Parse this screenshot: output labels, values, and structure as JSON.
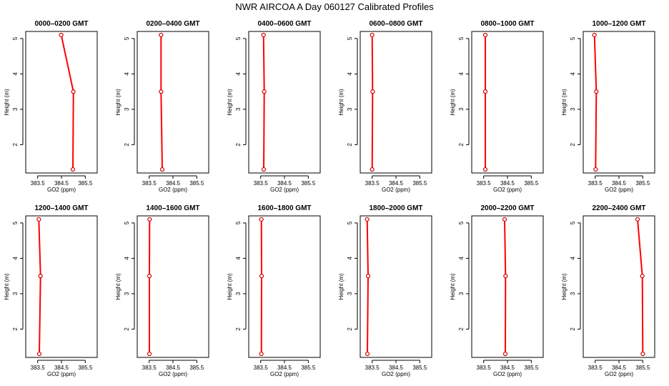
{
  "figure": {
    "title": "NWR AIRCOA A  Day 060127  Calibrated Profiles",
    "xlabel": "GO2 (ppm)",
    "ylabel": "Height (m)",
    "line_color": "#ff0000",
    "marker_color": "#cc0000"
  },
  "chart_data": [
    {
      "type": "line",
      "title": "0000–0200 GMT",
      "xlim": [
        383.0,
        386.0
      ],
      "ylim": [
        1.2,
        5.2
      ],
      "xticks": [
        "383.5",
        "384.5",
        "385.5"
      ],
      "xtick_values": [
        383.5,
        384.5,
        385.5
      ],
      "yticks": [
        "2",
        "3",
        "4",
        "5"
      ],
      "ytick_values": [
        2,
        3,
        4,
        5
      ],
      "x": [
        384.49,
        385.0,
        384.98
      ],
      "y": [
        5.1,
        3.5,
        1.3
      ]
    },
    {
      "type": "line",
      "title": "0200–0400 GMT",
      "xlim": [
        383.0,
        386.0
      ],
      "ylim": [
        1.2,
        5.2
      ],
      "xticks": [
        "383.5",
        "384.5",
        "385.5"
      ],
      "xtick_values": [
        383.5,
        384.5,
        385.5
      ],
      "yticks": [
        "2",
        "3",
        "4",
        "5"
      ],
      "ytick_values": [
        2,
        3,
        4,
        5
      ],
      "x": [
        384.0,
        384.0,
        384.05
      ],
      "y": [
        5.1,
        3.5,
        1.3
      ]
    },
    {
      "type": "line",
      "title": "0400–0600 GMT",
      "xlim": [
        383.0,
        386.0
      ],
      "ylim": [
        1.2,
        5.2
      ],
      "xticks": [
        "383.5",
        "384.5",
        "385.5"
      ],
      "xtick_values": [
        383.5,
        384.5,
        385.5
      ],
      "yticks": [
        "2",
        "3",
        "4",
        "5"
      ],
      "ytick_values": [
        2,
        3,
        4,
        5
      ],
      "x": [
        383.62,
        383.65,
        383.63
      ],
      "y": [
        5.1,
        3.5,
        1.3
      ]
    },
    {
      "type": "line",
      "title": "0600–0800 GMT",
      "xlim": [
        383.0,
        386.0
      ],
      "ylim": [
        1.2,
        5.2
      ],
      "xticks": [
        "383.5",
        "384.5",
        "385.5"
      ],
      "xtick_values": [
        383.5,
        384.5,
        385.5
      ],
      "yticks": [
        "2",
        "3",
        "4",
        "5"
      ],
      "ytick_values": [
        2,
        3,
        4,
        5
      ],
      "x": [
        383.5,
        383.52,
        383.5
      ],
      "y": [
        5.1,
        3.5,
        1.3
      ]
    },
    {
      "type": "line",
      "title": "0800–1000 GMT",
      "xlim": [
        383.0,
        386.0
      ],
      "ylim": [
        1.2,
        5.2
      ],
      "xticks": [
        "383.5",
        "384.5",
        "385.5"
      ],
      "xtick_values": [
        383.5,
        384.5,
        385.5
      ],
      "yticks": [
        "2",
        "3",
        "4",
        "5"
      ],
      "ytick_values": [
        2,
        3,
        4,
        5
      ],
      "x": [
        383.57,
        383.57,
        383.57
      ],
      "y": [
        5.1,
        3.5,
        1.3
      ]
    },
    {
      "type": "line",
      "title": "1000–1200 GMT",
      "xlim": [
        383.0,
        386.0
      ],
      "ylim": [
        1.2,
        5.2
      ],
      "xticks": [
        "383.5",
        "384.5",
        "385.5"
      ],
      "xtick_values": [
        383.5,
        384.5,
        385.5
      ],
      "yticks": [
        "2",
        "3",
        "4",
        "5"
      ],
      "ytick_values": [
        2,
        3,
        4,
        5
      ],
      "x": [
        383.47,
        383.55,
        383.52
      ],
      "y": [
        5.1,
        3.5,
        1.3
      ]
    },
    {
      "type": "line",
      "title": "1200–1400 GMT",
      "xlim": [
        383.0,
        386.0
      ],
      "ylim": [
        1.2,
        5.2
      ],
      "xticks": [
        "383.5",
        "384.5",
        "385.5"
      ],
      "xtick_values": [
        383.5,
        384.5,
        385.5
      ],
      "yticks": [
        "2",
        "3",
        "4",
        "5"
      ],
      "ytick_values": [
        2,
        3,
        4,
        5
      ],
      "x": [
        383.55,
        383.62,
        383.57
      ],
      "y": [
        5.1,
        3.5,
        1.3
      ]
    },
    {
      "type": "line",
      "title": "1400–1600 GMT",
      "xlim": [
        383.0,
        386.0
      ],
      "ylim": [
        1.2,
        5.2
      ],
      "xticks": [
        "383.5",
        "384.5",
        "385.5"
      ],
      "xtick_values": [
        383.5,
        384.5,
        385.5
      ],
      "yticks": [
        "2",
        "3",
        "4",
        "5"
      ],
      "ytick_values": [
        2,
        3,
        4,
        5
      ],
      "x": [
        383.52,
        383.51,
        383.51
      ],
      "y": [
        5.1,
        3.5,
        1.3
      ]
    },
    {
      "type": "line",
      "title": "1600–1800 GMT",
      "xlim": [
        383.0,
        386.0
      ],
      "ylim": [
        1.2,
        5.2
      ],
      "xticks": [
        "383.5",
        "384.5",
        "385.5"
      ],
      "xtick_values": [
        383.5,
        384.5,
        385.5
      ],
      "yticks": [
        "2",
        "3",
        "4",
        "5"
      ],
      "ytick_values": [
        2,
        3,
        4,
        5
      ],
      "x": [
        383.53,
        383.54,
        383.53
      ],
      "y": [
        5.1,
        3.5,
        1.3
      ]
    },
    {
      "type": "line",
      "title": "1800–2000 GMT",
      "xlim": [
        383.0,
        386.0
      ],
      "ylim": [
        1.2,
        5.2
      ],
      "xticks": [
        "383.5",
        "384.5",
        "385.5"
      ],
      "xtick_values": [
        383.5,
        384.5,
        385.5
      ],
      "yticks": [
        "2",
        "3",
        "4",
        "5"
      ],
      "ytick_values": [
        2,
        3,
        4,
        5
      ],
      "x": [
        383.29,
        383.33,
        383.3
      ],
      "y": [
        5.1,
        3.5,
        1.3
      ]
    },
    {
      "type": "line",
      "title": "2000–2200 GMT",
      "xlim": [
        383.0,
        386.0
      ],
      "ylim": [
        1.2,
        5.2
      ],
      "xticks": [
        "383.5",
        "384.5",
        "385.5"
      ],
      "xtick_values": [
        383.5,
        384.5,
        385.5
      ],
      "yticks": [
        "2",
        "3",
        "4",
        "5"
      ],
      "ytick_values": [
        2,
        3,
        4,
        5
      ],
      "x": [
        384.38,
        384.42,
        384.41
      ],
      "y": [
        5.1,
        3.5,
        1.3
      ]
    },
    {
      "type": "line",
      "title": "2200–2400 GMT",
      "xlim": [
        383.0,
        386.0
      ],
      "ylim": [
        1.2,
        5.2
      ],
      "xticks": [
        "383.5",
        "384.5",
        "385.5"
      ],
      "xtick_values": [
        383.5,
        384.5,
        385.5
      ],
      "yticks": [
        "2",
        "3",
        "4",
        "5"
      ],
      "ytick_values": [
        2,
        3,
        4,
        5
      ],
      "x": [
        385.28,
        385.48,
        385.5
      ],
      "y": [
        5.1,
        3.5,
        1.3
      ]
    }
  ]
}
